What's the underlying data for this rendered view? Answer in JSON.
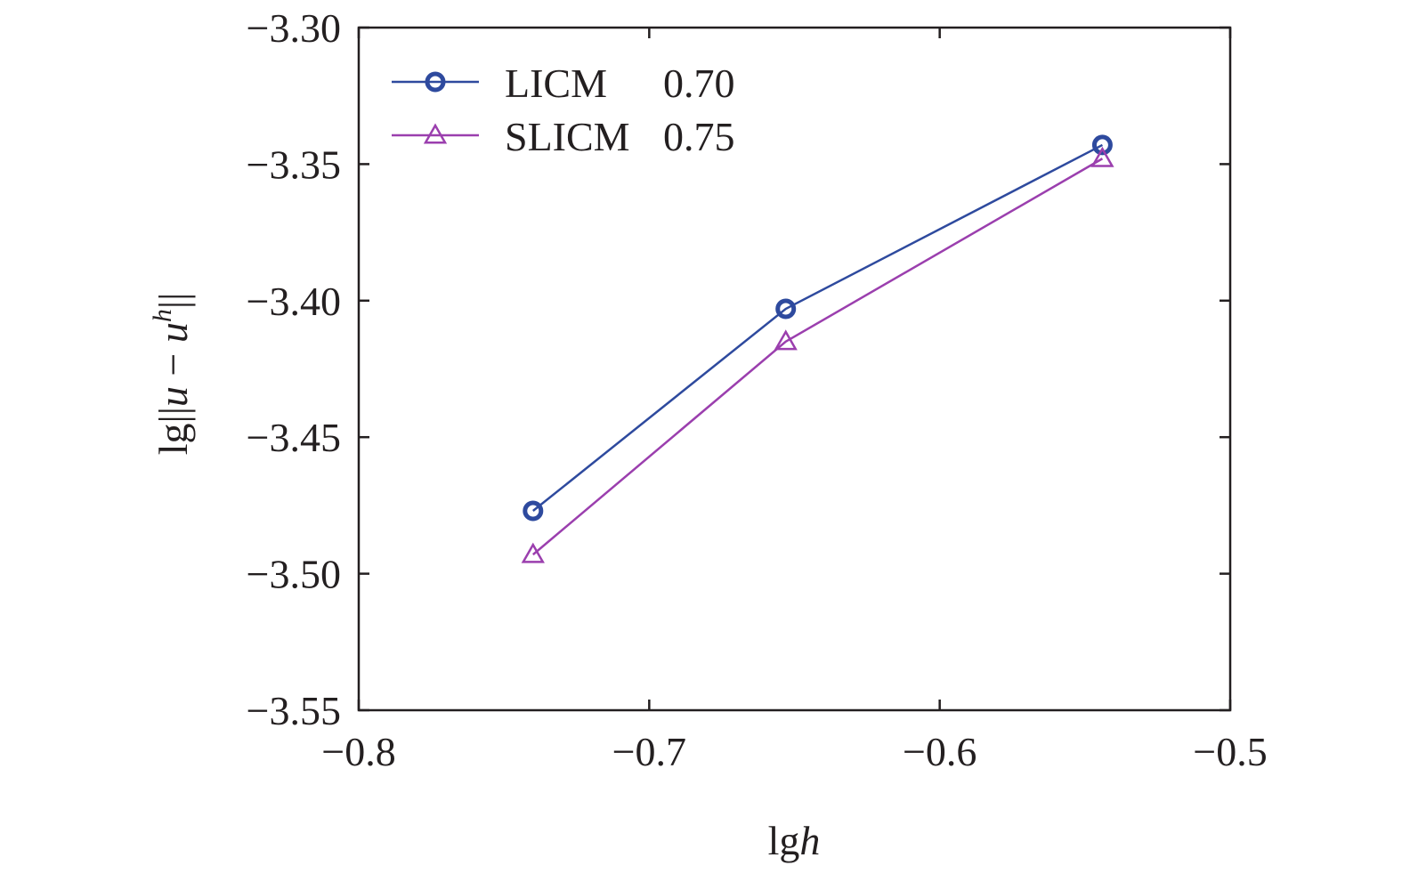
{
  "chart_data": {
    "type": "line",
    "title": "",
    "xlabel": {
      "prefix": "lg",
      "var": "h"
    },
    "ylabel": {
      "prefix": "lg||",
      "var1": "u",
      "minus": " − ",
      "var2": "u",
      "sup": "h",
      "suffix": "||"
    },
    "xlim": [
      -0.8,
      -0.5
    ],
    "ylim": [
      -3.55,
      -3.3
    ],
    "x_ticks": [
      -0.8,
      -0.7,
      -0.6,
      -0.5
    ],
    "x_tick_labels": [
      "−0.8",
      "−0.7",
      "−0.6",
      "−0.5"
    ],
    "y_ticks": [
      -3.3,
      -3.35,
      -3.4,
      -3.45,
      -3.5,
      -3.55
    ],
    "y_tick_labels": [
      "−3.30",
      "−3.35",
      "−3.40",
      "−3.45",
      "−3.50",
      "−3.55"
    ],
    "grid": false,
    "legend_position": "top-left",
    "series": [
      {
        "name": "LICM",
        "rate": "0.70",
        "color": "#2e4a9e",
        "marker": "circle",
        "x": [
          -0.74,
          -0.653,
          -0.544
        ],
        "y": [
          -3.477,
          -3.403,
          -3.343
        ]
      },
      {
        "name": "SLICM",
        "rate": "0.75",
        "color": "#9b3fae",
        "marker": "triangle",
        "x": [
          -0.74,
          -0.653,
          -0.544
        ],
        "y": [
          -3.493,
          -3.415,
          -3.348
        ]
      }
    ]
  }
}
